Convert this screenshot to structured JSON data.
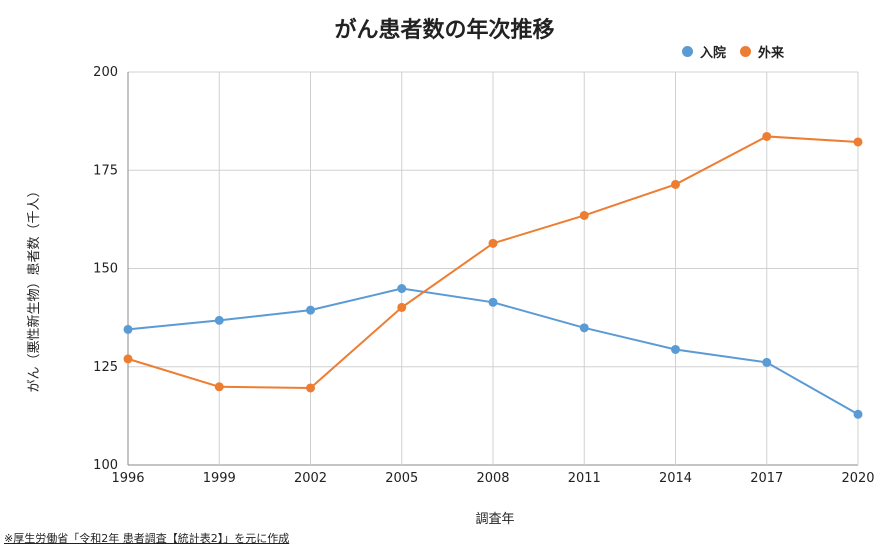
{
  "chart_data": {
    "type": "line",
    "title": "がん患者数の年次推移",
    "xlabel": "調査年",
    "ylabel": "がん（悪性新生物）患者数（千人）",
    "categories": [
      "1996",
      "1999",
      "2002",
      "2005",
      "2008",
      "2011",
      "2014",
      "2017",
      "2020"
    ],
    "yticks": [
      "100",
      "125",
      "150",
      "175",
      "200"
    ],
    "ylim": [
      100,
      200
    ],
    "grid": true,
    "legend_position": "top-right",
    "series": [
      {
        "name": "入院",
        "color": "#5b9bd5",
        "values": [
          134.5,
          136.8,
          139.4,
          144.9,
          141.4,
          134.9,
          129.4,
          126.1,
          112.9
        ]
      },
      {
        "name": "外来",
        "color": "#ed7d31",
        "values": [
          127.0,
          119.9,
          119.6,
          140.1,
          156.4,
          163.5,
          171.4,
          183.6,
          182.2
        ]
      }
    ]
  },
  "source_note": "※厚生労働省「令和2年 患者調査【統計表2】」を元に作成"
}
